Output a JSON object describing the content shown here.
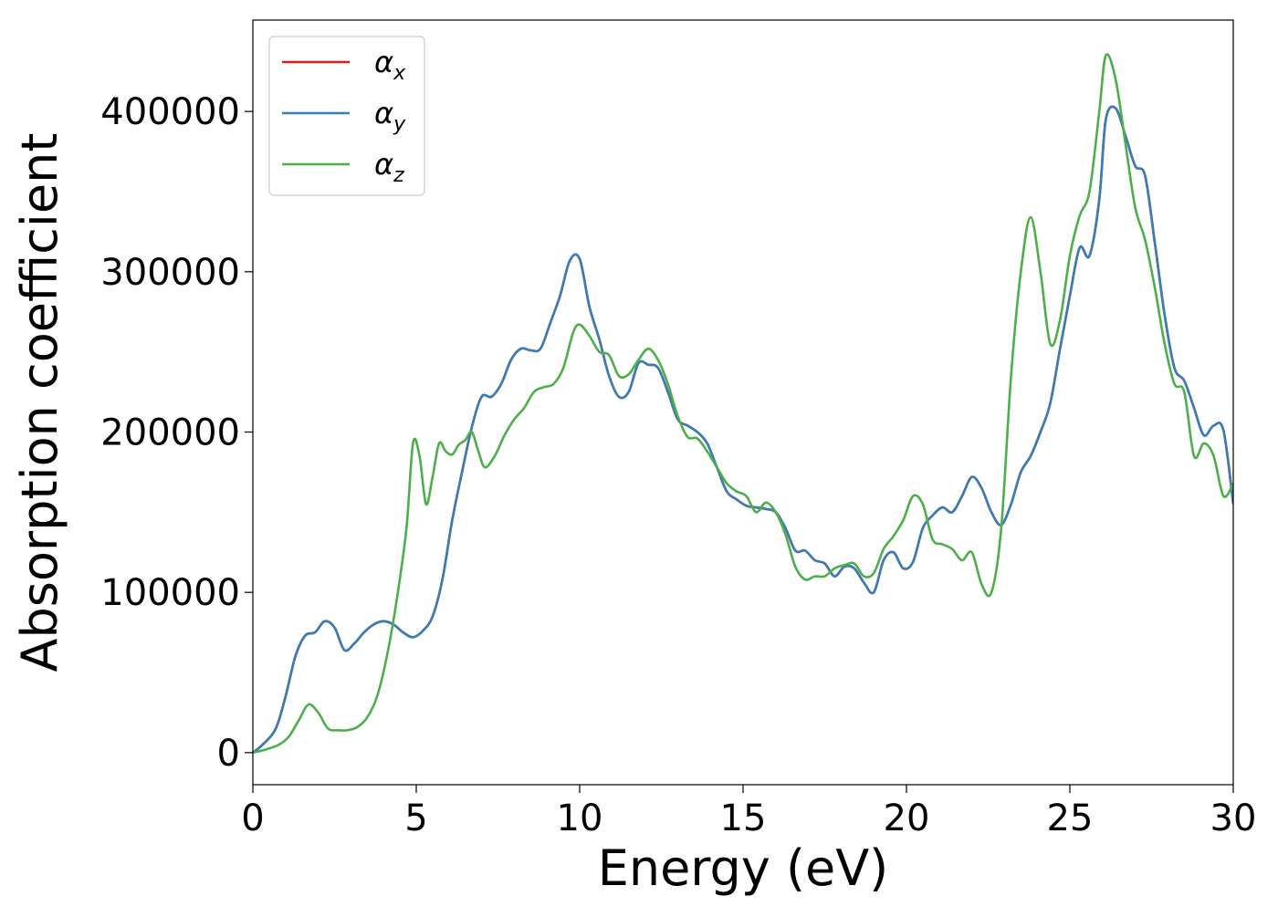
{
  "chart_data": {
    "type": "line",
    "title": "",
    "xlabel": "Energy (eV)",
    "ylabel": "Absorption coefficient",
    "xlim": [
      0,
      30
    ],
    "ylim": [
      -20000,
      457000
    ],
    "x_ticks": [
      0,
      5,
      10,
      15,
      20,
      25,
      30
    ],
    "y_ticks": [
      0,
      100000,
      200000,
      300000,
      400000
    ],
    "x_tick_labels": [
      "0",
      "5",
      "10",
      "15",
      "20",
      "25",
      "30"
    ],
    "y_tick_labels": [
      "0",
      "100000",
      "200000",
      "300000",
      "400000"
    ],
    "grid": false,
    "legend_position": "upper-left",
    "legend": [
      {
        "symbol": "α",
        "sub": "x",
        "color": "#e41a1c"
      },
      {
        "symbol": "α",
        "sub": "y",
        "color": "#377eb8"
      },
      {
        "symbol": "α",
        "sub": "z",
        "color": "#4daf4a"
      }
    ],
    "series": [
      {
        "name": "αx",
        "color": "#e41a1c",
        "x": [
          0,
          0.3,
          0.7,
          1.0,
          1.3,
          1.6,
          1.9,
          2.2,
          2.5,
          2.8,
          3.1,
          3.4,
          3.7,
          4.0,
          4.3,
          4.6,
          4.9,
          5.2,
          5.5,
          5.8,
          6.1,
          6.4,
          6.7,
          7.0,
          7.3,
          7.6,
          7.9,
          8.2,
          8.5,
          8.8,
          9.1,
          9.4,
          9.7,
          10.0,
          10.3,
          10.6,
          10.9,
          11.2,
          11.5,
          11.8,
          12.1,
          12.4,
          12.7,
          13.0,
          13.3,
          13.6,
          13.9,
          14.2,
          14.5,
          14.8,
          15.1,
          15.4,
          15.7,
          16.0,
          16.3,
          16.6,
          16.9,
          17.2,
          17.5,
          17.8,
          18.1,
          18.4,
          18.7,
          19.0,
          19.3,
          19.6,
          19.9,
          20.2,
          20.5,
          20.8,
          21.1,
          21.4,
          21.7,
          22.0,
          22.3,
          22.6,
          22.9,
          23.2,
          23.5,
          23.8,
          24.1,
          24.4,
          24.7,
          25.0,
          25.3,
          25.6,
          25.9,
          26.1,
          26.4,
          26.7,
          27.0,
          27.3,
          27.6,
          27.9,
          28.2,
          28.5,
          28.8,
          29.1,
          29.4,
          29.7,
          30.0
        ],
        "values": [
          0,
          5000,
          15000,
          35000,
          60000,
          73000,
          75000,
          82000,
          78000,
          64000,
          68000,
          75000,
          80000,
          82000,
          80000,
          75000,
          72000,
          76000,
          85000,
          108000,
          145000,
          175000,
          203000,
          222000,
          222000,
          230000,
          245000,
          252000,
          251000,
          252000,
          268000,
          285000,
          307000,
          308000,
          278000,
          258000,
          235000,
          222000,
          225000,
          243000,
          242000,
          240000,
          225000,
          208000,
          204000,
          200000,
          193000,
          178000,
          163000,
          158000,
          154000,
          153000,
          152000,
          150000,
          140000,
          126000,
          126000,
          120000,
          118000,
          110000,
          116000,
          115000,
          106000,
          100000,
          120000,
          125000,
          115000,
          119000,
          140000,
          148000,
          153000,
          150000,
          160000,
          172000,
          165000,
          150000,
          142000,
          155000,
          175000,
          185000,
          200000,
          218000,
          252000,
          285000,
          315000,
          310000,
          345000,
          395000,
          402000,
          385000,
          366000,
          360000,
          318000,
          273000,
          240000,
          232000,
          215000,
          198000,
          204000,
          201000,
          155000
        ]
      },
      {
        "name": "αy",
        "color": "#377eb8",
        "x": [
          0,
          0.3,
          0.7,
          1.0,
          1.3,
          1.6,
          1.9,
          2.2,
          2.5,
          2.8,
          3.1,
          3.4,
          3.7,
          4.0,
          4.3,
          4.6,
          4.9,
          5.2,
          5.5,
          5.8,
          6.1,
          6.4,
          6.7,
          7.0,
          7.3,
          7.6,
          7.9,
          8.2,
          8.5,
          8.8,
          9.1,
          9.4,
          9.7,
          10.0,
          10.3,
          10.6,
          10.9,
          11.2,
          11.5,
          11.8,
          12.1,
          12.4,
          12.7,
          13.0,
          13.3,
          13.6,
          13.9,
          14.2,
          14.5,
          14.8,
          15.1,
          15.4,
          15.7,
          16.0,
          16.3,
          16.6,
          16.9,
          17.2,
          17.5,
          17.8,
          18.1,
          18.4,
          18.7,
          19.0,
          19.3,
          19.6,
          19.9,
          20.2,
          20.5,
          20.8,
          21.1,
          21.4,
          21.7,
          22.0,
          22.3,
          22.6,
          22.9,
          23.2,
          23.5,
          23.8,
          24.1,
          24.4,
          24.7,
          25.0,
          25.3,
          25.6,
          25.9,
          26.1,
          26.4,
          26.7,
          27.0,
          27.3,
          27.6,
          27.9,
          28.2,
          28.5,
          28.8,
          29.1,
          29.4,
          29.7,
          30.0
        ],
        "values": [
          0,
          5000,
          15000,
          35000,
          60000,
          73000,
          75000,
          82000,
          78000,
          64000,
          68000,
          75000,
          80000,
          82000,
          80000,
          75000,
          72000,
          76000,
          85000,
          108000,
          145000,
          175000,
          203000,
          222000,
          222000,
          230000,
          245000,
          252000,
          251000,
          252000,
          268000,
          285000,
          307000,
          308000,
          278000,
          258000,
          235000,
          222000,
          225000,
          243000,
          242000,
          240000,
          225000,
          208000,
          204000,
          200000,
          193000,
          178000,
          163000,
          158000,
          154000,
          153000,
          152000,
          150000,
          140000,
          126000,
          126000,
          120000,
          118000,
          110000,
          116000,
          115000,
          106000,
          100000,
          120000,
          125000,
          115000,
          119000,
          140000,
          148000,
          153000,
          150000,
          160000,
          172000,
          165000,
          150000,
          142000,
          155000,
          175000,
          185000,
          200000,
          218000,
          252000,
          285000,
          315000,
          310000,
          345000,
          395000,
          402000,
          385000,
          366000,
          360000,
          318000,
          273000,
          240000,
          232000,
          215000,
          198000,
          204000,
          201000,
          155000
        ]
      },
      {
        "name": "αz",
        "color": "#4daf4a",
        "x": [
          0,
          0.4,
          0.8,
          1.1,
          1.4,
          1.7,
          2.0,
          2.3,
          2.6,
          2.9,
          3.2,
          3.5,
          3.8,
          4.1,
          4.4,
          4.7,
          4.9,
          5.1,
          5.3,
          5.5,
          5.7,
          5.9,
          6.1,
          6.3,
          6.5,
          6.7,
          6.9,
          7.1,
          7.4,
          7.7,
          8.0,
          8.3,
          8.6,
          8.9,
          9.2,
          9.5,
          9.8,
          10.0,
          10.3,
          10.6,
          10.9,
          11.2,
          11.5,
          11.8,
          12.1,
          12.4,
          12.7,
          13.0,
          13.3,
          13.6,
          13.9,
          14.2,
          14.5,
          14.8,
          15.1,
          15.4,
          15.7,
          16.0,
          16.3,
          16.6,
          16.9,
          17.2,
          17.5,
          17.8,
          18.1,
          18.4,
          18.7,
          19.0,
          19.3,
          19.6,
          19.9,
          20.2,
          20.5,
          20.8,
          21.1,
          21.4,
          21.7,
          22.0,
          22.3,
          22.6,
          22.9,
          23.2,
          23.5,
          23.8,
          24.1,
          24.4,
          24.7,
          25.0,
          25.3,
          25.6,
          25.9,
          26.1,
          26.4,
          26.7,
          27.0,
          27.3,
          27.6,
          27.9,
          28.2,
          28.5,
          28.8,
          29.1,
          29.4,
          29.7,
          30.0
        ],
        "values": [
          0,
          2000,
          5000,
          10000,
          20000,
          30000,
          25000,
          15000,
          14000,
          14000,
          16000,
          22000,
          35000,
          60000,
          95000,
          140000,
          193000,
          185000,
          155000,
          172000,
          193000,
          188000,
          186000,
          192000,
          195000,
          200000,
          188000,
          178000,
          185000,
          198000,
          208000,
          215000,
          225000,
          228000,
          230000,
          240000,
          262000,
          267000,
          260000,
          250000,
          248000,
          235000,
          236000,
          245000,
          252000,
          245000,
          230000,
          210000,
          197000,
          196000,
          188000,
          178000,
          168000,
          163000,
          160000,
          150000,
          156000,
          150000,
          136000,
          116000,
          108000,
          110000,
          110000,
          115000,
          117000,
          118000,
          110000,
          112000,
          127000,
          135000,
          145000,
          160000,
          155000,
          133000,
          130000,
          127000,
          120000,
          125000,
          105000,
          100000,
          140000,
          235000,
          300000,
          334000,
          300000,
          255000,
          270000,
          310000,
          335000,
          350000,
          400000,
          435000,
          420000,
          380000,
          340000,
          320000,
          290000,
          255000,
          230000,
          225000,
          185000,
          193000,
          185000,
          160000,
          168000
        ]
      }
    ]
  }
}
